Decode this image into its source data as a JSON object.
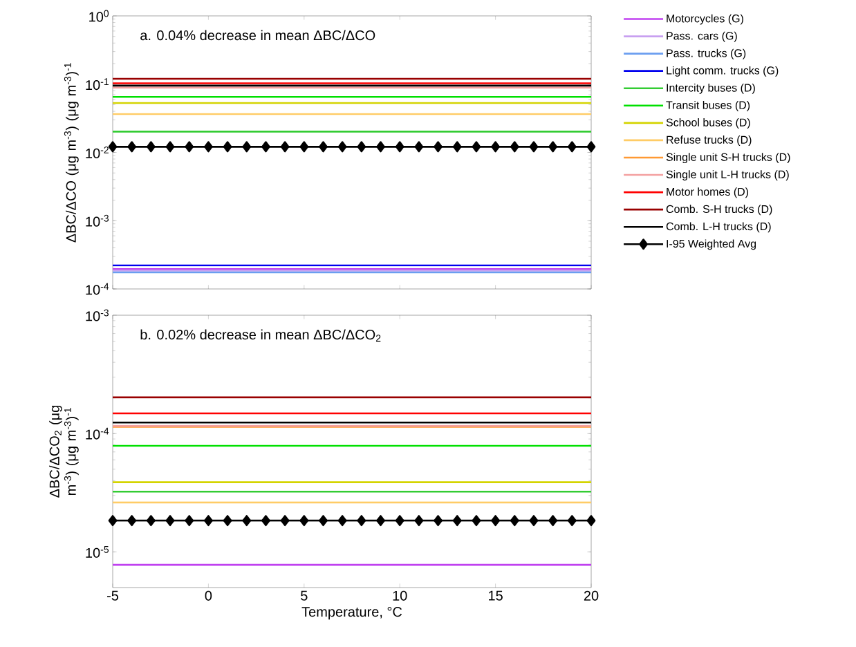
{
  "chart_data": [
    {
      "type": "line",
      "ylabel": "ΔBC/ΔCO (μg m$^{-3}$) (μg m$^{-3}$)$^{-1}$",
      "annotations": [
        "a. 0.04% decrease in mean ΔBC/ΔCO"
      ],
      "log": "y",
      "legend": "right",
      "tick_labels": "y",
      "line_style": "solid",
      "xlim": [
        -5,
        20
      ],
      "xticks": [
        -5,
        0,
        5,
        10,
        15,
        20
      ],
      "ylim": [
        0.0001,
        1
      ],
      "yticks": [
        {
          "value": 0.0001,
          "label": "10$^{-4}$"
        },
        {
          "value": 0.001,
          "label": "10$^{-3}$"
        },
        {
          "value": 0.01,
          "label": "10$^{-2}$"
        },
        {
          "value": 0.1,
          "label": "10$^{-1}$"
        },
        {
          "value": 1,
          "label": "10$^{0}$"
        }
      ],
      "series": [
        {
          "name": "Motorcycles (G)",
          "color": "#c040f0",
          "x": [
            -5,
            20
          ],
          "values": [
            0.000195,
            0.000195
          ]
        },
        {
          "name": "Pass. cars (G)",
          "color": "#c8a0f0",
          "x": [
            -5,
            20
          ],
          "values": [
            0.000186,
            0.000186
          ]
        },
        {
          "name": "Pass. trucks (G)",
          "color": "#6a9ef0",
          "x": [
            -5,
            20
          ],
          "values": [
            0.000175,
            0.000175
          ]
        },
        {
          "name": "Light comm. trucks (G)",
          "color": "#0000ee",
          "x": [
            -5,
            20
          ],
          "values": [
            0.000221,
            0.000221
          ]
        },
        {
          "name": "Intercity buses (D)",
          "color": "#33cc33",
          "x": [
            -5,
            20
          ],
          "values": [
            0.0202,
            0.0202
          ]
        },
        {
          "name": "Transit buses (D)",
          "color": "#00e000",
          "x": [
            -5,
            20
          ],
          "values": [
            0.065,
            0.065
          ]
        },
        {
          "name": "School buses (D)",
          "color": "#d4d400",
          "x": [
            -5,
            20
          ],
          "values": [
            0.053,
            0.053
          ]
        },
        {
          "name": "Refuse trucks (D)",
          "color": "#ffcc66",
          "x": [
            -5,
            20
          ],
          "values": [
            0.0365,
            0.0365
          ]
        },
        {
          "name": "Single unit S-H trucks (D)",
          "color": "#ff9933",
          "values": [
            null,
            null
          ]
        },
        {
          "name": "Single unit L-H trucks (D)",
          "color": "#f4a0a0",
          "x": [
            -5,
            20
          ],
          "values": [
            0.089,
            0.089
          ]
        },
        {
          "name": "Motor homes (D)",
          "color": "#ff0000",
          "x": [
            -5,
            20
          ],
          "values": [
            0.103,
            0.103
          ]
        },
        {
          "name": "Comb. S-H trucks (D)",
          "color": "#990000",
          "x": [
            -5,
            20
          ],
          "values": [
            0.12,
            0.12
          ]
        },
        {
          "name": "Comb. L-H trucks (D)",
          "color": "#000000",
          "x": [
            -5,
            20
          ],
          "values": [
            0.095,
            0.095
          ]
        },
        {
          "name": "I-95 Weighted Avg",
          "color": "#000000",
          "marker": "diamond",
          "x": [
            -5,
            -4,
            -3,
            -2,
            -1,
            0,
            1,
            2,
            3,
            4,
            5,
            6,
            7,
            8,
            9,
            10,
            11,
            12,
            13,
            14,
            15,
            16,
            17,
            18,
            19,
            20
          ],
          "values": [
            0.0121,
            0.0121,
            0.0121,
            0.0121,
            0.0121,
            0.0121,
            0.0121,
            0.0121,
            0.0121,
            0.0121,
            0.0121,
            0.0121,
            0.0121,
            0.0121,
            0.0121,
            0.0121,
            0.0121,
            0.0121,
            0.0121,
            0.0121,
            0.0121,
            0.0121,
            0.0121,
            0.0121,
            0.0121,
            0.0121
          ]
        }
      ]
    },
    {
      "type": "line",
      "xlabel": "Temperature, °C",
      "ylabel": "ΔBC/ΔCO$_{2}$ (μg m$^{-3}$) (μg m$^{-3}$)$^{-1}$",
      "annotations": [
        "b. 0.02% decrease in mean ΔBC/ΔCO$_{2}$"
      ],
      "log": "y",
      "line_style": "solid",
      "xlim": [
        -5,
        20
      ],
      "xticks": [
        -5,
        0,
        5,
        10,
        15,
        20
      ],
      "ylim": [
        5e-06,
        0.001
      ],
      "yticks": [
        {
          "value": 1e-05,
          "label": "10$^{-5}$"
        },
        {
          "value": 0.0001,
          "label": "10$^{-4}$"
        },
        {
          "value": 0.001,
          "label": "10$^{-3}$"
        }
      ],
      "series": [
        {
          "color": "#c040f0",
          "x": [
            -5,
            20
          ],
          "values": [
            7.78e-06,
            7.78e-06
          ]
        },
        {
          "color": "#c8a0f0",
          "values": [
            null,
            null
          ]
        },
        {
          "color": "#6a9ef0",
          "values": [
            null,
            null
          ]
        },
        {
          "color": "#0000ee",
          "values": [
            null,
            null
          ]
        },
        {
          "color": "#33cc33",
          "x": [
            -5,
            20
          ],
          "values": [
            3.23e-05,
            3.23e-05
          ]
        },
        {
          "color": "#00e000",
          "x": [
            -5,
            20
          ],
          "values": [
            7.88e-05,
            7.88e-05
          ]
        },
        {
          "color": "#d4d400",
          "x": [
            -5,
            20
          ],
          "values": [
            3.88e-05,
            3.88e-05
          ]
        },
        {
          "color": "#ffcc66",
          "x": [
            -5,
            20
          ],
          "values": [
            2.62e-05,
            2.62e-05
          ]
        },
        {
          "color": "#ff9933",
          "x": [
            -5,
            20
          ],
          "values": [
            0.000114,
            0.000114
          ]
        },
        {
          "color": "#f4a0a0",
          "x": [
            -5,
            20
          ],
          "values": [
            0.000116,
            0.000116
          ]
        },
        {
          "color": "#ff0000",
          "x": [
            -5,
            20
          ],
          "values": [
            0.000148,
            0.000148
          ]
        },
        {
          "color": "#990000",
          "x": [
            -5,
            20
          ],
          "values": [
            0.000202,
            0.000202
          ]
        },
        {
          "color": "#000000",
          "x": [
            -5,
            20
          ],
          "values": [
            0.000124,
            0.000124
          ]
        },
        {
          "color": "#000000",
          "marker": "diamond",
          "x": [
            -5,
            -4,
            -3,
            -2,
            -1,
            0,
            1,
            2,
            3,
            4,
            5,
            6,
            7,
            8,
            9,
            10,
            11,
            12,
            13,
            14,
            15,
            16,
            17,
            18,
            19,
            20
          ],
          "values": [
            1.84e-05,
            1.84e-05,
            1.84e-05,
            1.84e-05,
            1.84e-05,
            1.84e-05,
            1.84e-05,
            1.84e-05,
            1.84e-05,
            1.84e-05,
            1.84e-05,
            1.84e-05,
            1.84e-05,
            1.84e-05,
            1.84e-05,
            1.84e-05,
            1.84e-05,
            1.84e-05,
            1.84e-05,
            1.84e-05,
            1.84e-05,
            1.84e-05,
            1.84e-05,
            1.84e-05,
            1.84e-05,
            1.84e-05
          ]
        }
      ]
    }
  ]
}
